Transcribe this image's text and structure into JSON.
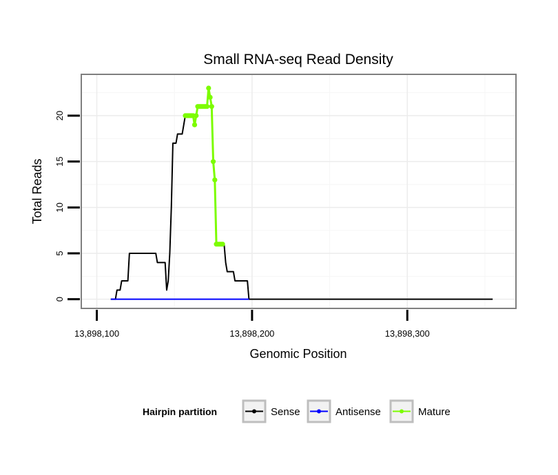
{
  "chart_data": {
    "type": "line",
    "title": "Small RNA-seq Read Density",
    "xlabel": "Genomic Position",
    "ylabel": "Total Reads",
    "xlim": [
      13898090,
      13898370
    ],
    "ylim": [
      -1.0,
      24.5
    ],
    "xticks": [
      13898100,
      13898200,
      13898300
    ],
    "xtick_labels": [
      "13,898,100",
      "13,898,200",
      "13,898,300"
    ],
    "yticks": [
      0,
      5,
      10,
      15,
      20
    ],
    "ytick_labels": [
      "0",
      "5",
      "10",
      "15",
      "20"
    ],
    "grid": true,
    "legend": {
      "title": "Hairpin partition",
      "placement": "bottom",
      "entries": [
        {
          "name": "Sense",
          "color": "#000000"
        },
        {
          "name": "Antisense",
          "color": "#0000ff"
        },
        {
          "name": "Mature",
          "color": "#7cfc00"
        }
      ]
    },
    "series": [
      {
        "name": "Sense",
        "color": "#000000",
        "x": [
          13898109,
          13898112,
          13898113,
          13898114,
          13898115,
          13898116,
          13898117,
          13898118,
          13898120,
          13898121,
          13898127,
          13898138,
          13898139,
          13898144,
          13898145,
          13898146,
          13898147,
          13898148,
          13898149,
          13898150,
          13898151,
          13898152,
          13898153,
          13898154,
          13898155,
          13898157,
          13898158,
          13898159,
          13898160,
          13898161,
          13898162,
          13898163,
          13898164,
          13898165,
          13898166,
          13898167,
          13898168,
          13898169,
          13898170,
          13898171,
          13898172,
          13898173,
          13898174,
          13898175,
          13898176,
          13898177,
          13898178,
          13898179,
          13898180,
          13898181,
          13898182,
          13898183,
          13898184,
          13898185,
          13898188,
          13898189,
          13898197,
          13898198,
          13898240,
          13898300,
          13898355
        ],
        "y": [
          0,
          0,
          1,
          1,
          1,
          2,
          2,
          2,
          2,
          5,
          5,
          5,
          4,
          4,
          1,
          2,
          5,
          10,
          17,
          17,
          17,
          18,
          18,
          18,
          18,
          20,
          20,
          20,
          20,
          20,
          20,
          19,
          20,
          21,
          21,
          21,
          21,
          21,
          21,
          21,
          23,
          22,
          21,
          15,
          13,
          6,
          6,
          6,
          6,
          6,
          6,
          4,
          3,
          3,
          3,
          2,
          2,
          0,
          0,
          0,
          0
        ]
      },
      {
        "name": "Antisense",
        "color": "#0000ff",
        "x": [
          13898109,
          13898198
        ],
        "y": [
          0,
          0
        ]
      },
      {
        "name": "Mature",
        "color": "#7cfc00",
        "x": [
          13898157,
          13898158,
          13898159,
          13898160,
          13898161,
          13898162,
          13898163,
          13898164,
          13898165,
          13898166,
          13898167,
          13898168,
          13898169,
          13898170,
          13898171,
          13898172,
          13898173,
          13898174,
          13898175,
          13898176,
          13898177,
          13898178,
          13898179,
          13898180,
          13898181
        ],
        "y": [
          20,
          20,
          20,
          20,
          20,
          20,
          19,
          20,
          21,
          21,
          21,
          21,
          21,
          21,
          21,
          23,
          22,
          21,
          15,
          13,
          6,
          6,
          6,
          6,
          6
        ]
      }
    ]
  }
}
